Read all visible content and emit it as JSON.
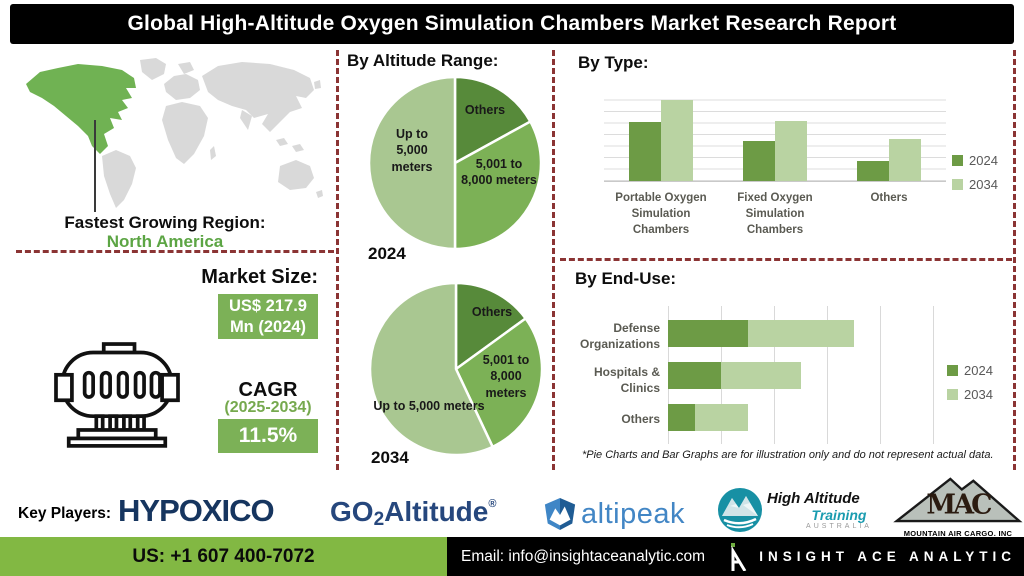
{
  "header": {
    "title": "Global High-Altitude Oxygen Simulation Chambers Market Research Report"
  },
  "region": {
    "label": "Fastest Growing Region:",
    "value": "North America"
  },
  "market": {
    "heading": "Market Size:",
    "size_line1": "US$ 217.9",
    "size_line2": "Mn (2024)",
    "cagr_label": "CAGR",
    "cagr_period": "(2025-2034)",
    "cagr_value": "11.5%"
  },
  "sections": {
    "altitude_heading": "By Altitude Range:",
    "type_heading": "By Type:",
    "end_use_heading": "By End-Use:",
    "footnote": "*Pie Charts and Bar Graphs are for illustration only and do not represent actual data."
  },
  "chart_data": [
    {
      "id": "altitude_2024",
      "type": "pie",
      "title": "2024",
      "labels": [
        "Others",
        "5,001 to 8,000 meters",
        "Up to 5,000 meters"
      ],
      "values": [
        17,
        33,
        50
      ],
      "colors": [
        "#578a3a",
        "#7cb156",
        "#a9c791"
      ],
      "start_angle_deg": 0,
      "legend_position": "none"
    },
    {
      "id": "altitude_2034",
      "type": "pie",
      "title": "2034",
      "labels": [
        "Others",
        "5,001 to 8,000 meters",
        "Up to 5,000 meters"
      ],
      "values": [
        15,
        28,
        57
      ],
      "colors": [
        "#578a3a",
        "#7cb156",
        "#a9c791"
      ],
      "start_angle_deg": 0,
      "legend_position": "none"
    },
    {
      "id": "by_type",
      "type": "bar",
      "orientation": "vertical-grouped",
      "categories": [
        "Portable Oxygen Simulation Chambers",
        "Fixed Oxygen Simulation Chambers",
        "Others"
      ],
      "series": [
        {
          "name": "2024",
          "color": "#6d9b45",
          "values": [
            65,
            44,
            22
          ]
        },
        {
          "name": "2034",
          "color": "#b9d3a2",
          "values": [
            89,
            66,
            46
          ]
        }
      ],
      "ylim": [
        0,
        100
      ],
      "grid": "horizontal",
      "legend_position": "right"
    },
    {
      "id": "by_end_use",
      "type": "bar",
      "orientation": "horizontal-stacked",
      "categories": [
        "Defense Organizations",
        "Hospitals & Clinics",
        "Others"
      ],
      "series": [
        {
          "name": "2024",
          "color": "#6d9b45",
          "values": [
            15,
            10,
            5
          ]
        },
        {
          "name": "2034",
          "color": "#b9d3a2",
          "values": [
            20,
            15,
            10
          ]
        }
      ],
      "xlim": [
        0,
        60
      ],
      "grid": "vertical",
      "legend_position": "right"
    }
  ],
  "key_players": {
    "label": "Key Players:",
    "hypoxico": "HYPOXICO",
    "go2altitude": {
      "pre": "GO",
      "sub": "2",
      "post": "Altitude",
      "reg": "®"
    },
    "altipeak": "altipeak",
    "hat": {
      "line1": "High Altitude",
      "line2": "Training",
      "line3": "AUSTRALIA"
    },
    "mac": {
      "acronym": "MAC",
      "caption": "MOUNTAIN AIR CARGO. INC"
    }
  },
  "footer": {
    "phone": "US: +1 607 400-7072",
    "email": "Email: info@insightaceanalytic.com",
    "brand": "INSIGHT ACE ANALYTIC"
  },
  "colors": {
    "series_2024": "#6d9b45",
    "series_2034": "#b9d3a2",
    "pie_dark": "#578a3a",
    "pie_medium": "#7cb156",
    "pie_light": "#a9c791",
    "map_highlight": "#70b253",
    "map_base": "#d9d9d9",
    "divider": "#8b3434",
    "footer_green": "#82b843",
    "value_box_green": "#7cb157"
  }
}
